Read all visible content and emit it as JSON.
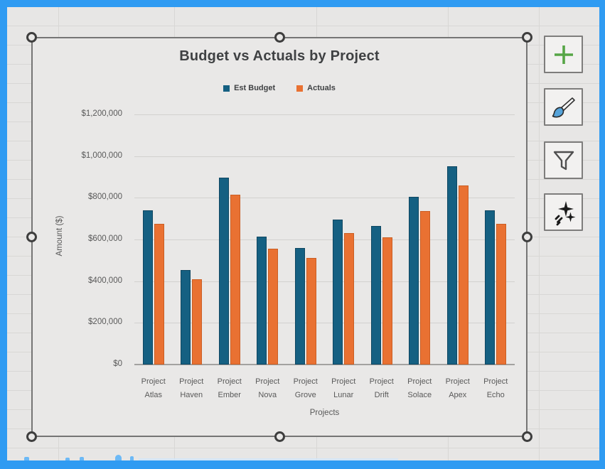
{
  "chart": {
    "title": "Budget vs Actuals by Project",
    "y_axis_title": "Amount ($)",
    "x_axis_title": "Projects"
  },
  "chart_data": {
    "type": "bar",
    "title": "Budget vs Actuals by Project",
    "categories": [
      "Project Atlas",
      "Project Haven",
      "Project Ember",
      "Project Nova",
      "Project Grove",
      "Project Lunar",
      "Project Drift",
      "Project Solace",
      "Project Apex",
      "Project Echo"
    ],
    "series": [
      {
        "name": "Est Budget",
        "color": "#156082",
        "values": [
          740000,
          455000,
          895000,
          615000,
          560000,
          695000,
          665000,
          805000,
          950000,
          740000
        ]
      },
      {
        "name": "Actuals",
        "color": "#E97132",
        "values": [
          675000,
          410000,
          815000,
          555000,
          510000,
          630000,
          610000,
          735000,
          860000,
          675000
        ]
      }
    ],
    "xlabel": "Projects",
    "ylabel": "Amount ($)",
    "ylim": [
      0,
      1200000
    ],
    "y_ticks": [
      "$0",
      "$200,000",
      "$400,000",
      "$600,000",
      "$800,000",
      "$1,000,000",
      "$1,200,000"
    ],
    "grid": true,
    "legend_position": "top"
  },
  "chart_tools": {
    "buttons": [
      {
        "id": "chart-elements-button",
        "icon": "plus-icon"
      },
      {
        "id": "chart-styles-button",
        "icon": "paintbrush-icon"
      },
      {
        "id": "chart-filters-button",
        "icon": "funnel-icon"
      },
      {
        "id": "analyze-data-button",
        "icon": "sparkles-icon"
      }
    ]
  },
  "colors": {
    "frame_blue": "#2f9bf2",
    "sheet_bg": "#e7e6e5",
    "series_blue": "#156082",
    "series_orange": "#E97132",
    "plus_green": "#56a546"
  }
}
